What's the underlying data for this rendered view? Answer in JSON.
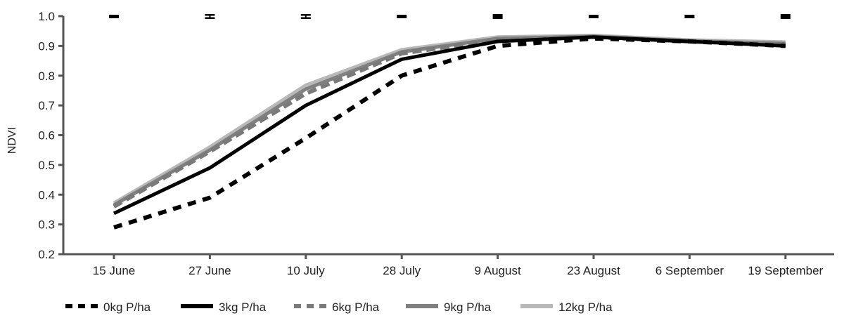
{
  "chart_data": {
    "type": "line",
    "title": "",
    "xlabel": "",
    "ylabel": "NDVI",
    "ylim": [
      0.2,
      1.0
    ],
    "yticks": [
      "0.2",
      "0.3",
      "0.4",
      "0.5",
      "0.6",
      "0.7",
      "0.8",
      "0.9",
      "1.0"
    ],
    "grid": false,
    "legend_position": "bottom",
    "categories": [
      "15 June",
      "27 June",
      "10 July",
      "28 July",
      "9 August",
      "23 August",
      "6 September",
      "19 September"
    ],
    "series": [
      {
        "name": "0kg P/ha",
        "color": "#000000",
        "style": "dashed",
        "values": [
          0.29,
          0.39,
          0.59,
          0.8,
          0.9,
          0.925,
          0.915,
          0.9
        ]
      },
      {
        "name": "3kg P/ha",
        "color": "#000000",
        "style": "solid",
        "values": [
          0.337,
          0.49,
          0.7,
          0.855,
          0.915,
          0.93,
          0.915,
          0.9
        ]
      },
      {
        "name": "6kg P/ha",
        "color": "#7a7a7a",
        "style": "dashed",
        "values": [
          0.36,
          0.545,
          0.74,
          0.875,
          0.92,
          0.93,
          0.915,
          0.905
        ]
      },
      {
        "name": "9kg P/ha",
        "color": "#808080",
        "style": "solid",
        "values": [
          0.365,
          0.55,
          0.755,
          0.88,
          0.925,
          0.932,
          0.917,
          0.908
        ]
      },
      {
        "name": "12kg P/ha",
        "color": "#b8b8b8",
        "style": "solid",
        "values": [
          0.372,
          0.56,
          0.768,
          0.887,
          0.93,
          0.935,
          0.92,
          0.913
        ]
      }
    ],
    "significance_marks": [
      {
        "category": "15 June",
        "style": "bar"
      },
      {
        "category": "27 June",
        "style": "errorbar"
      },
      {
        "category": "10 July",
        "style": "errorbar"
      },
      {
        "category": "28 July",
        "style": "bar"
      },
      {
        "category": "9 August",
        "style": "box"
      },
      {
        "category": "23 August",
        "style": "bar"
      },
      {
        "category": "6 September",
        "style": "bar"
      },
      {
        "category": "19 September",
        "style": "box"
      }
    ],
    "axis_color": "#555555"
  }
}
